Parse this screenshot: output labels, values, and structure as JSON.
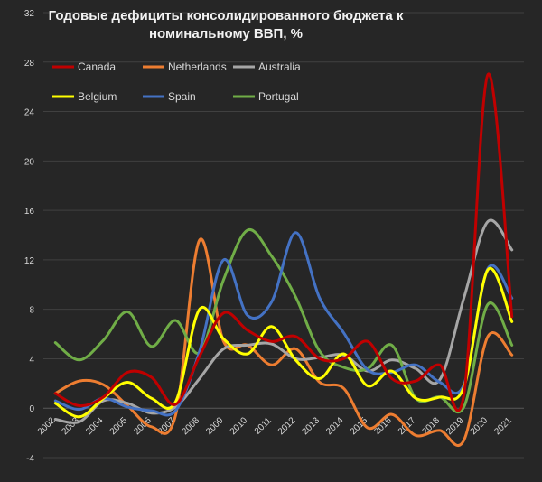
{
  "chart_data": {
    "type": "line",
    "title_lines": [
      "Годовые дефициты консолидированного бюджета к",
      "номинальному ВВП, %"
    ],
    "xlabel": "",
    "ylabel": "",
    "ylim": [
      -4,
      32
    ],
    "y_ticks": [
      -4,
      0,
      4,
      8,
      12,
      16,
      20,
      24,
      28,
      32
    ],
    "grid": true,
    "legend_position": "top",
    "categories": [
      "2002",
      "2003",
      "2004",
      "2005",
      "2006",
      "2007",
      "2008",
      "2009",
      "2010",
      "2011",
      "2012",
      "2013",
      "2014",
      "2015",
      "2016",
      "2017",
      "2018",
      "2019",
      "2020",
      "2021"
    ],
    "series": [
      {
        "name": "Canada",
        "color": "#c00000",
        "values": [
          1.2,
          0.2,
          0.9,
          2.9,
          2.5,
          0.3,
          4.2,
          7.7,
          6.3,
          5.4,
          5.8,
          4.0,
          4.0,
          5.4,
          2.4,
          2.2,
          3.5,
          1.1,
          27.0,
          7.4
        ]
      },
      {
        "name": "Netherlands",
        "color": "#ed7d31",
        "values": [
          1.2,
          2.2,
          1.9,
          0.2,
          -1.5,
          -0.6,
          13.6,
          5.4,
          5.1,
          3.5,
          4.8,
          2.1,
          1.6,
          -1.6,
          -0.5,
          -2.2,
          -1.8,
          -2.6,
          5.8,
          4.3
        ]
      },
      {
        "name": "Australia",
        "color": "#a6a6a6",
        "values": [
          -0.9,
          -1.1,
          0.6,
          0.4,
          -0.4,
          0.1,
          2.4,
          4.8,
          5.1,
          5.2,
          4.0,
          4.1,
          4.3,
          3.0,
          3.9,
          3.2,
          2.3,
          8.9,
          15.1,
          12.8
        ]
      },
      {
        "name": "Belgium",
        "color": "#ffff00",
        "values": [
          0.4,
          -0.7,
          0.8,
          2.1,
          0.8,
          0.5,
          8.0,
          5.6,
          4.4,
          6.6,
          3.9,
          2.4,
          4.4,
          1.8,
          3.0,
          0.8,
          0.9,
          1.7,
          11.2,
          7.0
        ]
      },
      {
        "name": "Spain",
        "color": "#4472c4",
        "values": [
          0.6,
          -0.1,
          0.8,
          0.1,
          -0.2,
          -0.2,
          4.6,
          12.0,
          7.5,
          8.6,
          14.2,
          8.9,
          6.1,
          3.1,
          2.9,
          3.5,
          2.1,
          1.9,
          11.3,
          8.9
        ]
      },
      {
        "name": "Portugal",
        "color": "#70ad47",
        "values": [
          5.3,
          3.9,
          5.5,
          7.8,
          5.0,
          7.1,
          4.5,
          10.4,
          14.4,
          12.3,
          9.0,
          4.6,
          3.3,
          3.2,
          5.1,
          0.8,
          0.9,
          0.1,
          8.4,
          5.1
        ]
      }
    ]
  }
}
